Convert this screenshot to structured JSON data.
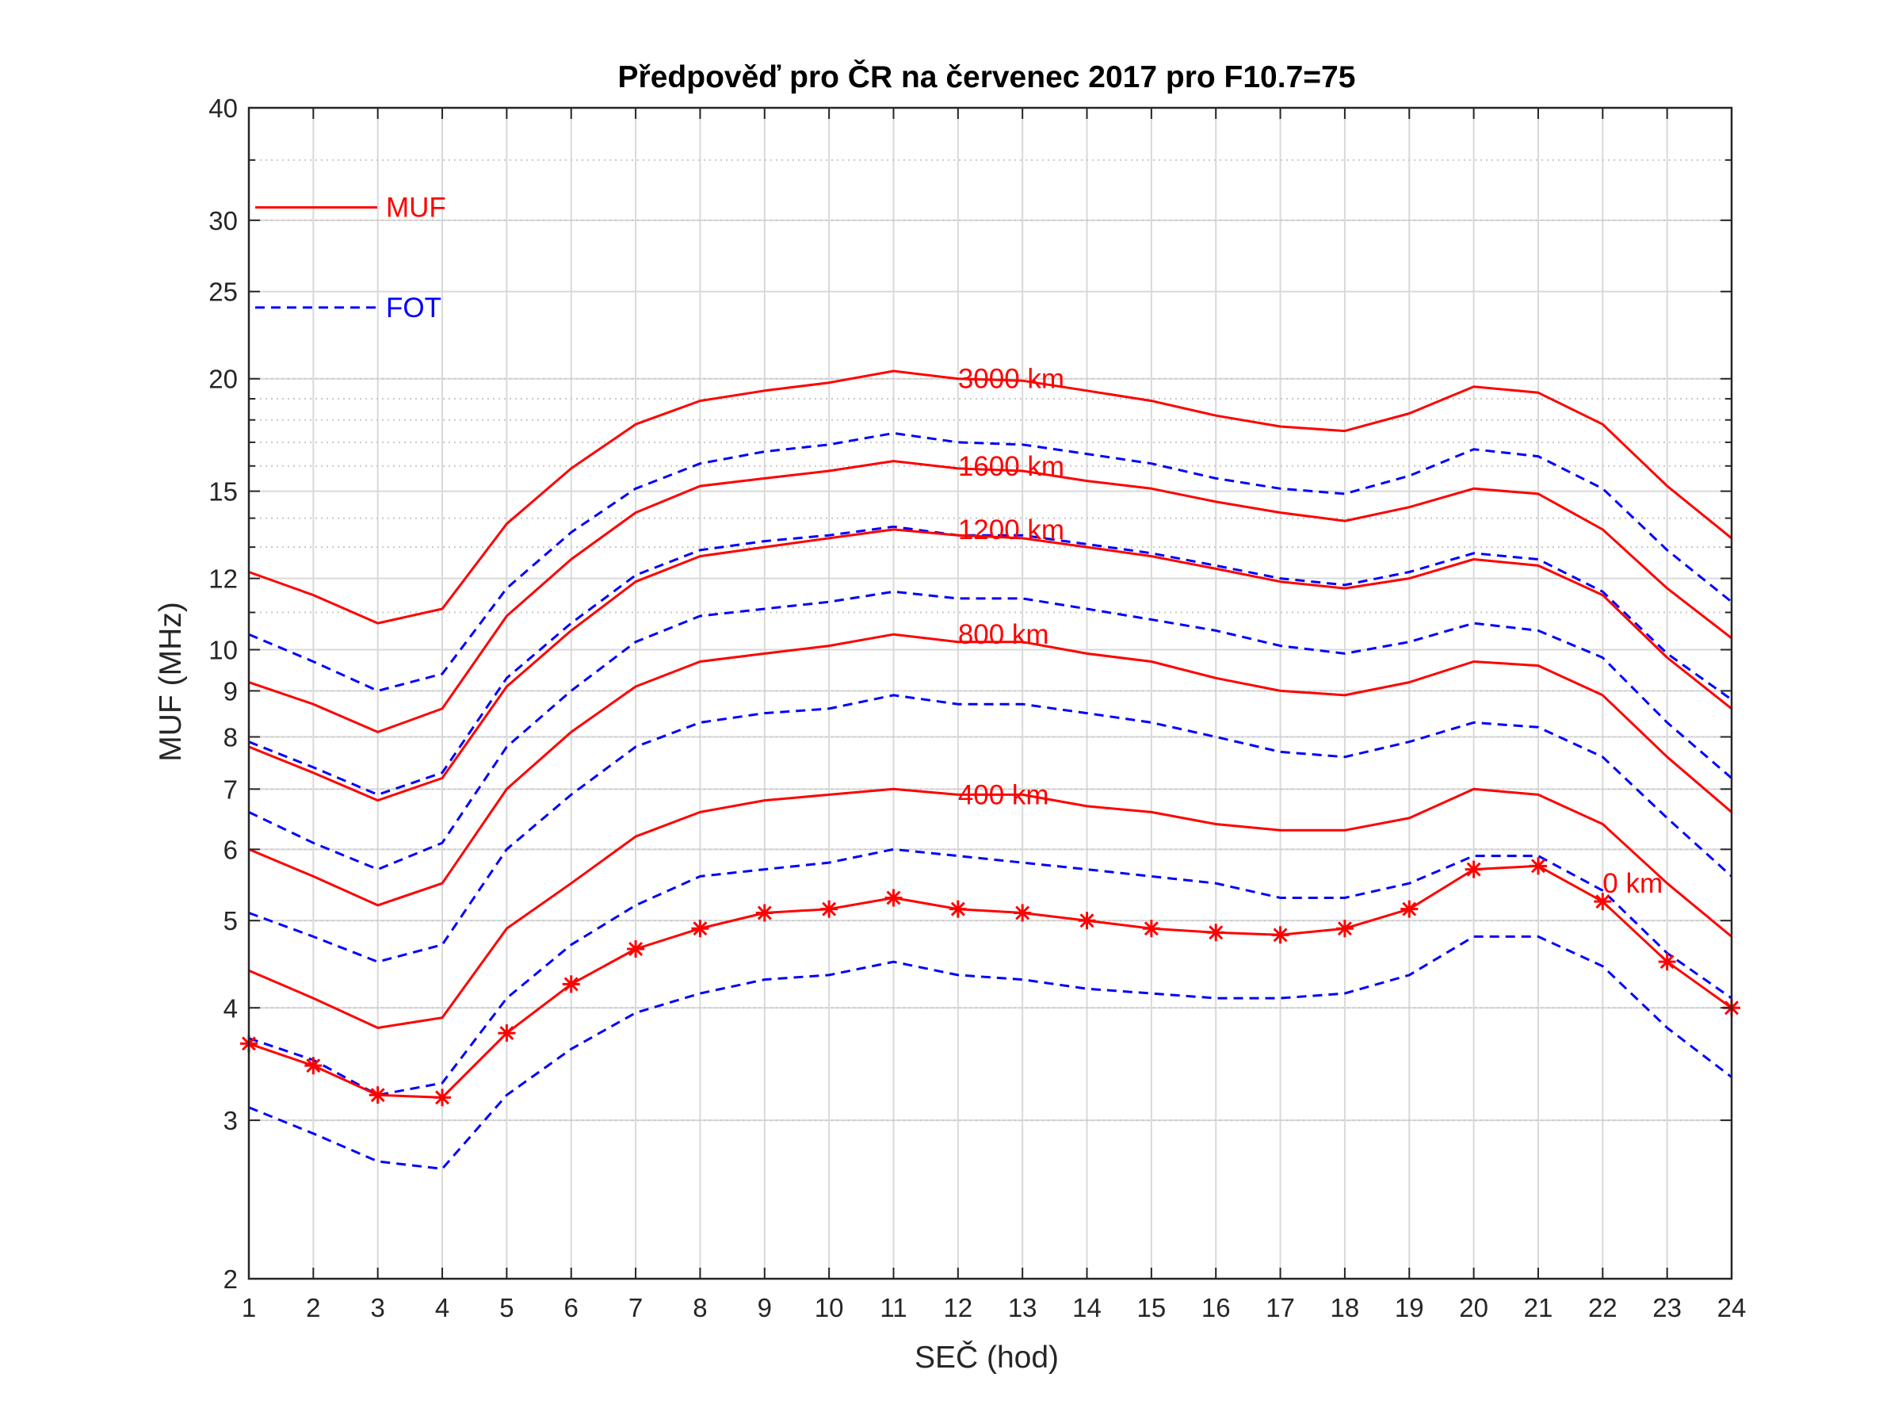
{
  "chart_data": {
    "type": "line",
    "title": "Předpověď pro ČR na červenec 2017 pro F10.7=75",
    "xlabel": "SEČ (hod)",
    "ylabel": "MUF (MHz)",
    "y_scale": "log",
    "xlim": [
      1,
      24
    ],
    "ylim": [
      2,
      40
    ],
    "x": [
      1,
      2,
      3,
      4,
      5,
      6,
      7,
      8,
      9,
      10,
      11,
      12,
      13,
      14,
      15,
      16,
      17,
      18,
      19,
      20,
      21,
      22,
      23,
      24
    ],
    "x_ticks": [
      "1",
      "2",
      "3",
      "4",
      "5",
      "6",
      "7",
      "8",
      "9",
      "10",
      "11",
      "12",
      "13",
      "14",
      "15",
      "16",
      "17",
      "18",
      "19",
      "20",
      "21",
      "22",
      "23",
      "24"
    ],
    "y_ticks": [
      2,
      3,
      4,
      5,
      6,
      7,
      8,
      9,
      10,
      12,
      15,
      20,
      25,
      30,
      40
    ],
    "grid": true,
    "legend": {
      "position": "top-left",
      "entries": [
        {
          "label": "MUF",
          "color": "#ff0000",
          "style": "solid"
        },
        {
          "label": "FOT",
          "color": "#0000ff",
          "style": "dashed"
        }
      ]
    },
    "colors": {
      "muf": "#ff0000",
      "fot": "#0000ff"
    },
    "distance_labels": [
      {
        "text": "3000 km",
        "x": 12,
        "y": 20
      },
      {
        "text": "1600 km",
        "x": 12,
        "y": 16
      },
      {
        "text": "1200 km",
        "x": 12,
        "y": 13.6
      },
      {
        "text": "800 km",
        "x": 12,
        "y": 10.4
      },
      {
        "text": "400 km",
        "x": 12,
        "y": 6.9
      },
      {
        "text": "0 km",
        "x": 22,
        "y": 5.5
      }
    ],
    "series": [
      {
        "type": "MUF",
        "style": "solid",
        "color": "#ff0000",
        "values": [
          12.2,
          11.5,
          10.7,
          11.1,
          13.8,
          15.9,
          17.8,
          18.9,
          19.4,
          19.8,
          20.4,
          20.0,
          19.9,
          19.4,
          18.9,
          18.2,
          17.7,
          17.5,
          18.3,
          19.6,
          19.3,
          17.8,
          15.2,
          13.3
        ]
      },
      {
        "type": "FOT",
        "style": "dashed",
        "color": "#0000ff",
        "values": [
          10.4,
          9.7,
          9.0,
          9.4,
          11.7,
          13.5,
          15.1,
          16.1,
          16.6,
          16.9,
          17.4,
          17.0,
          16.9,
          16.5,
          16.1,
          15.5,
          15.1,
          14.9,
          15.6,
          16.7,
          16.4,
          15.1,
          12.9,
          11.3
        ]
      },
      {
        "type": "MUF",
        "style": "solid",
        "color": "#ff0000",
        "values": [
          9.2,
          8.7,
          8.1,
          8.6,
          10.9,
          12.6,
          14.2,
          15.2,
          15.5,
          15.8,
          16.2,
          15.9,
          15.8,
          15.4,
          15.1,
          14.6,
          14.2,
          13.9,
          14.4,
          15.1,
          14.9,
          13.6,
          11.7,
          10.3
        ]
      },
      {
        "type": "FOT",
        "style": "dashed",
        "color": "#0000ff",
        "values": [
          7.9,
          7.4,
          6.9,
          7.3,
          9.3,
          10.7,
          12.1,
          12.9,
          13.2,
          13.4,
          13.7,
          13.4,
          13.4,
          13.1,
          12.8,
          12.4,
          12.0,
          11.8,
          12.2,
          12.8,
          12.6,
          11.6,
          9.9,
          8.8
        ]
      },
      {
        "type": "MUF",
        "style": "solid",
        "color": "#ff0000",
        "values": [
          7.8,
          7.3,
          6.8,
          7.2,
          9.1,
          10.5,
          11.9,
          12.7,
          13.0,
          13.3,
          13.6,
          13.4,
          13.3,
          13.0,
          12.7,
          12.3,
          11.9,
          11.7,
          12.0,
          12.6,
          12.4,
          11.5,
          9.8,
          8.6
        ]
      },
      {
        "type": "FOT",
        "style": "dashed",
        "color": "#0000ff",
        "values": [
          6.6,
          6.1,
          5.7,
          6.1,
          7.8,
          9.0,
          10.2,
          10.9,
          11.1,
          11.3,
          11.6,
          11.4,
          11.4,
          11.1,
          10.8,
          10.5,
          10.1,
          9.9,
          10.2,
          10.7,
          10.5,
          9.8,
          8.3,
          7.2
        ]
      },
      {
        "type": "MUF",
        "style": "solid",
        "color": "#ff0000",
        "values": [
          6.0,
          5.6,
          5.2,
          5.5,
          7.0,
          8.1,
          9.1,
          9.7,
          9.9,
          10.1,
          10.4,
          10.2,
          10.2,
          9.9,
          9.7,
          9.3,
          9.0,
          8.9,
          9.2,
          9.7,
          9.6,
          8.9,
          7.6,
          6.6
        ]
      },
      {
        "type": "FOT",
        "style": "dashed",
        "color": "#0000ff",
        "values": [
          5.1,
          4.8,
          4.5,
          4.7,
          6.0,
          6.9,
          7.8,
          8.3,
          8.5,
          8.6,
          8.9,
          8.7,
          8.7,
          8.5,
          8.3,
          8.0,
          7.7,
          7.6,
          7.9,
          8.3,
          8.2,
          7.6,
          6.5,
          5.6
        ]
      },
      {
        "type": "MUF",
        "style": "solid",
        "color": "#ff0000",
        "values": [
          4.4,
          4.1,
          3.8,
          3.9,
          4.9,
          5.5,
          6.2,
          6.6,
          6.8,
          6.9,
          7.0,
          6.9,
          6.9,
          6.7,
          6.6,
          6.4,
          6.3,
          6.3,
          6.5,
          7.0,
          6.9,
          6.4,
          5.5,
          4.8
        ]
      },
      {
        "type": "FOT",
        "style": "dashed",
        "color": "#0000ff",
        "values": [
          3.7,
          3.5,
          3.2,
          3.3,
          4.1,
          4.7,
          5.2,
          5.6,
          5.7,
          5.8,
          6.0,
          5.9,
          5.8,
          5.7,
          5.6,
          5.5,
          5.3,
          5.3,
          5.5,
          5.9,
          5.9,
          5.4,
          4.6,
          4.1
        ]
      },
      {
        "type": "MUF",
        "style": "solid",
        "markers": "asterisk",
        "color": "#ff0000",
        "values": [
          3.65,
          3.45,
          3.2,
          3.18,
          3.75,
          4.25,
          4.65,
          4.9,
          5.1,
          5.15,
          5.3,
          5.15,
          5.1,
          5.0,
          4.9,
          4.85,
          4.82,
          4.9,
          5.15,
          5.7,
          5.75,
          5.25,
          4.5,
          4.0
        ]
      },
      {
        "type": "FOT",
        "style": "dashed",
        "color": "#0000ff",
        "values": [
          3.1,
          2.9,
          2.7,
          2.65,
          3.2,
          3.6,
          3.95,
          4.15,
          4.3,
          4.35,
          4.5,
          4.35,
          4.3,
          4.2,
          4.15,
          4.1,
          4.1,
          4.15,
          4.35,
          4.8,
          4.8,
          4.45,
          3.8,
          3.35
        ]
      }
    ]
  }
}
